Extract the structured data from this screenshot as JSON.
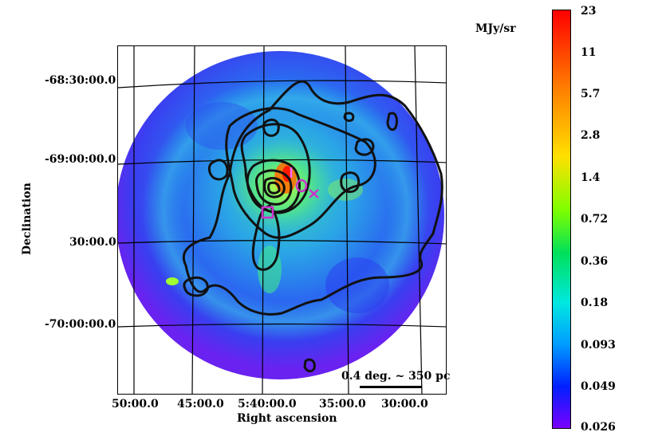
{
  "map": {
    "dec_labels": [
      "-68:30:00.0",
      "-69:00:00.0",
      "30:00.0",
      "-70:00:00.0"
    ],
    "ra_labels": [
      "50:00.0",
      "45:00.0",
      "5:40:00.0",
      "35:00.0",
      "30:00.0"
    ],
    "dec_axis_title": "Declination",
    "ra_axis_title": "Right ascension",
    "scalebar_label": "0.4 deg. ~ 350 pc"
  },
  "colorbar": {
    "unit": "MJy/sr",
    "ticks": [
      "23",
      "11",
      "5.7",
      "2.8",
      "1.4",
      "0.72",
      "0.36",
      "0.18",
      "0.093",
      "0.049",
      "0.026"
    ],
    "colors": {
      "high": "#ff0000",
      "mid": "#00e05a",
      "low": "#7a00ff"
    }
  },
  "markers": {
    "color": "#cc33cc",
    "shapes": [
      "square",
      "circle",
      "cross"
    ]
  }
}
